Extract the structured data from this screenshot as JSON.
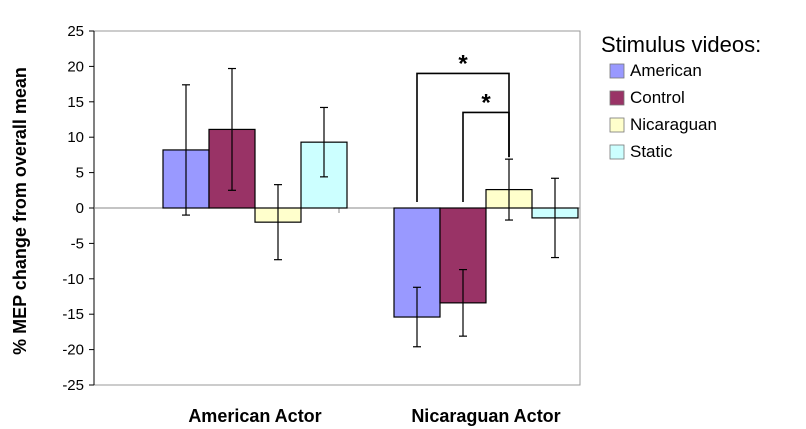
{
  "chart_data": {
    "type": "bar",
    "title": "",
    "xlabel": "",
    "ylabel": "% MEP change from overall mean",
    "ylim": [
      -25,
      25
    ],
    "y_ticks": [
      25,
      20,
      15,
      10,
      5,
      0,
      -5,
      -10,
      -15,
      -20,
      -25
    ],
    "categories": [
      "American Actor",
      "Nicaraguan Actor"
    ],
    "legend": {
      "title": "Stimulus videos:",
      "placement": "right"
    },
    "grid": false,
    "series": [
      {
        "name": "American",
        "color": "#9999ff",
        "values": [
          8.2,
          -15.4
        ],
        "error": [
          9.2,
          4.2
        ]
      },
      {
        "name": "Control",
        "color": "#993366",
        "values": [
          11.1,
          -13.4
        ],
        "error": [
          8.6,
          4.7
        ]
      },
      {
        "name": "Nicaraguan",
        "color": "#ffffcc",
        "values": [
          -2.0,
          2.6
        ],
        "error": [
          5.3,
          4.3
        ]
      },
      {
        "name": "Static",
        "color": "#ccffff",
        "values": [
          9.3,
          -1.4
        ],
        "error": [
          4.9,
          5.6
        ]
      }
    ],
    "annotations": [
      {
        "text": "*",
        "from": {
          "category": 1,
          "series": 0
        },
        "to": {
          "category": 1,
          "series": 2
        },
        "y": 19
      },
      {
        "text": "*",
        "from": {
          "category": 1,
          "series": 1
        },
        "to": {
          "category": 1,
          "series": 2
        },
        "y": 13.5
      }
    ]
  }
}
